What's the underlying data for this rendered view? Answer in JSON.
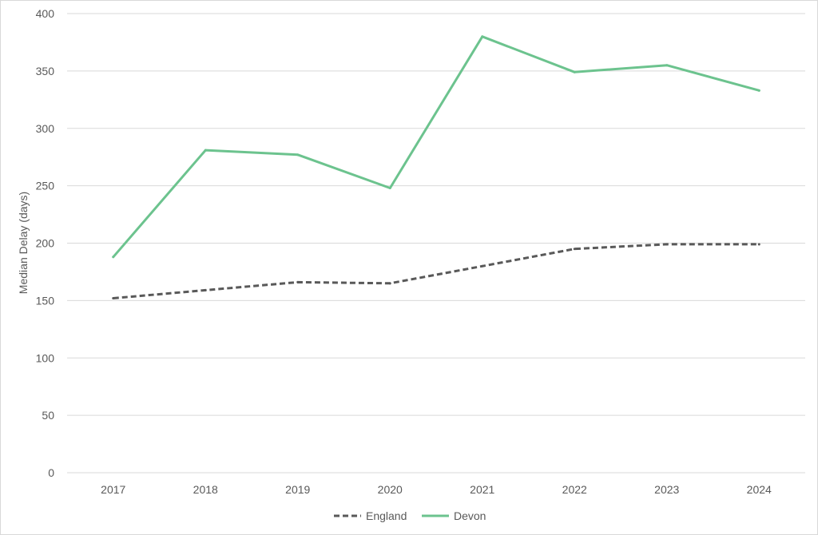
{
  "chart_data": {
    "type": "line",
    "title": "",
    "xlabel": "",
    "ylabel": "Median Delay (days)",
    "categories": [
      "2017",
      "2018",
      "2019",
      "2020",
      "2021",
      "2022",
      "2023",
      "2024"
    ],
    "ylim": [
      0,
      400
    ],
    "yticks": [
      0,
      50,
      100,
      150,
      200,
      250,
      300,
      350,
      400
    ],
    "grid": "horizontal",
    "legend_position": "bottom",
    "series": [
      {
        "name": "England",
        "color": "#595959",
        "style": "dashed",
        "values": [
          152,
          159,
          166,
          165,
          180,
          195,
          199,
          199
        ]
      },
      {
        "name": "Devon",
        "color": "#6cc38e",
        "style": "solid",
        "values": [
          188,
          281,
          277,
          248,
          380,
          349,
          355,
          333
        ]
      }
    ]
  }
}
